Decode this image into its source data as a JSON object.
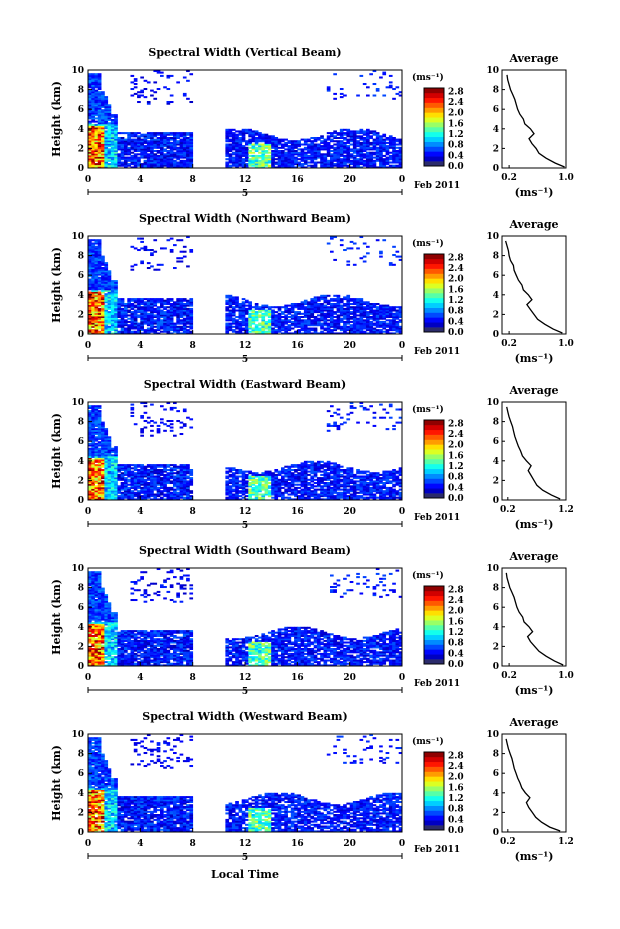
{
  "figure": {
    "x_label": "Local Time",
    "date_label": "Feb 2011",
    "day_label": "5",
    "colorbar_unit": "(ms⁻¹)",
    "avg_xlabel": "(ms⁻¹)"
  },
  "chart_data": [
    {
      "type": "heatmap",
      "title": "Spectral Width (Vertical Beam)",
      "xlabel": "",
      "ylabel": "Height (km)",
      "xlim": [
        0,
        24
      ],
      "ylim": [
        0,
        10
      ],
      "x_ticks": [
        "0",
        "4",
        "8",
        "12",
        "16",
        "20",
        "0"
      ],
      "y_ticks": [
        "0",
        "2",
        "4",
        "6",
        "8",
        "10"
      ],
      "colorbar": {
        "ticks": [
          "0.0",
          "0.4",
          "0.8",
          "1.2",
          "1.6",
          "2.0",
          "2.4",
          "2.8"
        ],
        "range": [
          0,
          3.0
        ]
      },
      "data_gap_hours": [
        8,
        10.5
      ],
      "average": {
        "title": "Average",
        "xlim": [
          0.1,
          1.0
        ],
        "x_ticks": [
          "0.2",
          "1.0"
        ],
        "y_ticks": [
          "0",
          "2",
          "4",
          "6",
          "8",
          "10"
        ],
        "height_km": [
          0.1,
          0.5,
          1,
          1.5,
          2,
          2.5,
          3,
          3.5,
          4,
          4.5,
          5,
          5.5,
          6,
          6.5,
          7,
          7.5,
          8,
          8.5,
          9,
          9.5
        ],
        "width": [
          0.98,
          0.85,
          0.72,
          0.62,
          0.58,
          0.52,
          0.48,
          0.55,
          0.5,
          0.42,
          0.4,
          0.35,
          0.32,
          0.3,
          0.28,
          0.25,
          0.22,
          0.2,
          0.18,
          0.17
        ]
      }
    },
    {
      "type": "heatmap",
      "title": "Spectral Width (Northward Beam)",
      "xlabel": "",
      "ylabel": "Height (km)",
      "xlim": [
        0,
        24
      ],
      "ylim": [
        0,
        10
      ],
      "x_ticks": [
        "0",
        "4",
        "8",
        "12",
        "16",
        "20",
        "0"
      ],
      "y_ticks": [
        "0",
        "2",
        "4",
        "6",
        "8",
        "10"
      ],
      "colorbar": {
        "ticks": [
          "0.0",
          "0.4",
          "0.8",
          "1.2",
          "1.6",
          "2.0",
          "2.4",
          "2.8"
        ],
        "range": [
          0,
          3.0
        ]
      },
      "data_gap_hours": [
        8,
        10.5
      ],
      "average": {
        "title": "Average",
        "xlim": [
          0.1,
          1.0
        ],
        "x_ticks": [
          "0.2",
          "1.0"
        ],
        "y_ticks": [
          "0",
          "2",
          "4",
          "6",
          "8",
          "10"
        ],
        "height_km": [
          0.1,
          0.5,
          1,
          1.5,
          2,
          2.5,
          3,
          3.5,
          4,
          4.5,
          5,
          5.5,
          6,
          6.5,
          7,
          7.5,
          8,
          8.5,
          9,
          9.5
        ],
        "width": [
          0.95,
          0.82,
          0.7,
          0.6,
          0.55,
          0.5,
          0.45,
          0.52,
          0.47,
          0.4,
          0.38,
          0.33,
          0.3,
          0.27,
          0.26,
          0.22,
          0.2,
          0.19,
          0.17,
          0.15
        ]
      }
    },
    {
      "type": "heatmap",
      "title": "Spectral Width (Eastward Beam)",
      "xlabel": "",
      "ylabel": "Height (km)",
      "xlim": [
        0,
        24
      ],
      "ylim": [
        0,
        10
      ],
      "x_ticks": [
        "0",
        "4",
        "8",
        "12",
        "16",
        "20",
        "0"
      ],
      "y_ticks": [
        "0",
        "2",
        "4",
        "6",
        "8",
        "10"
      ],
      "colorbar": {
        "ticks": [
          "0.0",
          "0.4",
          "0.8",
          "1.2",
          "1.6",
          "2.0",
          "2.4",
          "2.8"
        ],
        "range": [
          0,
          3.0
        ]
      },
      "data_gap_hours": [
        8,
        10.5
      ],
      "average": {
        "title": "Average",
        "xlim": [
          0.1,
          1.2
        ],
        "x_ticks": [
          "0.2",
          "1.2"
        ],
        "y_ticks": [
          "0",
          "2",
          "4",
          "6",
          "8",
          "10"
        ],
        "height_km": [
          0.1,
          0.5,
          1,
          1.5,
          2,
          2.5,
          3,
          3.5,
          4,
          4.5,
          5,
          5.5,
          6,
          6.5,
          7,
          7.5,
          8,
          8.5,
          9,
          9.5
        ],
        "width": [
          1.1,
          0.95,
          0.8,
          0.7,
          0.65,
          0.6,
          0.55,
          0.6,
          0.52,
          0.45,
          0.42,
          0.38,
          0.35,
          0.32,
          0.3,
          0.28,
          0.25,
          0.22,
          0.2,
          0.18
        ]
      }
    },
    {
      "type": "heatmap",
      "title": "Spectral Width (Southward Beam)",
      "xlabel": "",
      "ylabel": "Height (km)",
      "xlim": [
        0,
        24
      ],
      "ylim": [
        0,
        10
      ],
      "x_ticks": [
        "0",
        "4",
        "8",
        "12",
        "16",
        "20",
        "0"
      ],
      "y_ticks": [
        "0",
        "2",
        "4",
        "6",
        "8",
        "10"
      ],
      "colorbar": {
        "ticks": [
          "0.0",
          "0.4",
          "0.8",
          "1.2",
          "1.6",
          "2.0",
          "2.4",
          "2.8"
        ],
        "range": [
          0,
          3.0
        ]
      },
      "data_gap_hours": [
        8,
        10.5
      ],
      "average": {
        "title": "Average",
        "xlim": [
          0.1,
          1.0
        ],
        "x_ticks": [
          "0.2",
          "1.0"
        ],
        "y_ticks": [
          "0",
          "2",
          "4",
          "6",
          "8",
          "10"
        ],
        "height_km": [
          0.1,
          0.5,
          1,
          1.5,
          2,
          2.5,
          3,
          3.5,
          4,
          4.5,
          5,
          5.5,
          6,
          6.5,
          7,
          7.5,
          8,
          8.5,
          9,
          9.5
        ],
        "width": [
          0.96,
          0.84,
          0.72,
          0.62,
          0.56,
          0.5,
          0.46,
          0.53,
          0.48,
          0.41,
          0.39,
          0.34,
          0.31,
          0.29,
          0.27,
          0.24,
          0.21,
          0.19,
          0.17,
          0.16
        ]
      }
    },
    {
      "type": "heatmap",
      "title": "Spectral Width (Westward Beam)",
      "xlabel": "Local Time",
      "ylabel": "Height (km)",
      "xlim": [
        0,
        24
      ],
      "ylim": [
        0,
        10
      ],
      "x_ticks": [
        "0",
        "4",
        "8",
        "12",
        "16",
        "20",
        "0"
      ],
      "y_ticks": [
        "0",
        "2",
        "4",
        "6",
        "8",
        "10"
      ],
      "colorbar": {
        "ticks": [
          "0.0",
          "0.4",
          "0.8",
          "1.2",
          "1.6",
          "2.0",
          "2.4",
          "2.8"
        ],
        "range": [
          0,
          3.0
        ]
      },
      "data_gap_hours": [
        8,
        10.5
      ],
      "average": {
        "title": "Average",
        "xlim": [
          0.1,
          1.2
        ],
        "x_ticks": [
          "0.2",
          "1.2"
        ],
        "y_ticks": [
          "0",
          "2",
          "4",
          "6",
          "8",
          "10"
        ],
        "height_km": [
          0.1,
          0.5,
          1,
          1.5,
          2,
          2.5,
          3,
          3.5,
          4,
          4.5,
          5,
          5.5,
          6,
          6.5,
          7,
          7.5,
          8,
          8.5,
          9,
          9.5
        ],
        "width": [
          1.1,
          0.92,
          0.78,
          0.68,
          0.62,
          0.56,
          0.52,
          0.58,
          0.5,
          0.44,
          0.41,
          0.37,
          0.34,
          0.31,
          0.29,
          0.27,
          0.24,
          0.21,
          0.19,
          0.17
        ]
      }
    }
  ]
}
